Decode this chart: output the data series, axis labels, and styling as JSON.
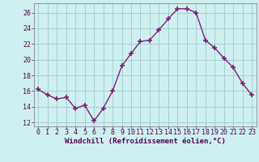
{
  "x": [
    0,
    1,
    2,
    3,
    4,
    5,
    6,
    7,
    8,
    9,
    10,
    11,
    12,
    13,
    14,
    15,
    16,
    17,
    18,
    19,
    20,
    21,
    22,
    23
  ],
  "y": [
    16.2,
    15.5,
    15.0,
    15.2,
    13.8,
    14.2,
    12.2,
    13.8,
    16.0,
    19.2,
    20.8,
    22.3,
    22.5,
    23.8,
    25.2,
    26.5,
    26.5,
    26.0,
    22.5,
    21.5,
    20.2,
    19.0,
    17.0,
    15.5
  ],
  "line_color": "#7B1F7B",
  "marker": "+",
  "markersize": 4,
  "markeredgewidth": 1.2,
  "linewidth": 1.0,
  "bg_color": "#cff0f0",
  "grid_color": "#a0cccc",
  "xlabel": "Windchill (Refroidissement éolien,°C)",
  "ylabel": "",
  "xlim": [
    -0.5,
    23.5
  ],
  "ylim": [
    11.5,
    27.2
  ],
  "yticks": [
    12,
    14,
    16,
    18,
    20,
    22,
    24,
    26
  ],
  "xticks": [
    0,
    1,
    2,
    3,
    4,
    5,
    6,
    7,
    8,
    9,
    10,
    11,
    12,
    13,
    14,
    15,
    16,
    17,
    18,
    19,
    20,
    21,
    22,
    23
  ],
  "xtick_labels": [
    "0",
    "1",
    "2",
    "3",
    "4",
    "5",
    "6",
    "7",
    "8",
    "9",
    "10",
    "11",
    "12",
    "13",
    "14",
    "15",
    "16",
    "17",
    "18",
    "19",
    "20",
    "21",
    "22",
    "23"
  ],
  "xlabel_fontsize": 6.5,
  "tick_fontsize": 6.0,
  "spine_color": "#9999aa",
  "linestyle": "-"
}
